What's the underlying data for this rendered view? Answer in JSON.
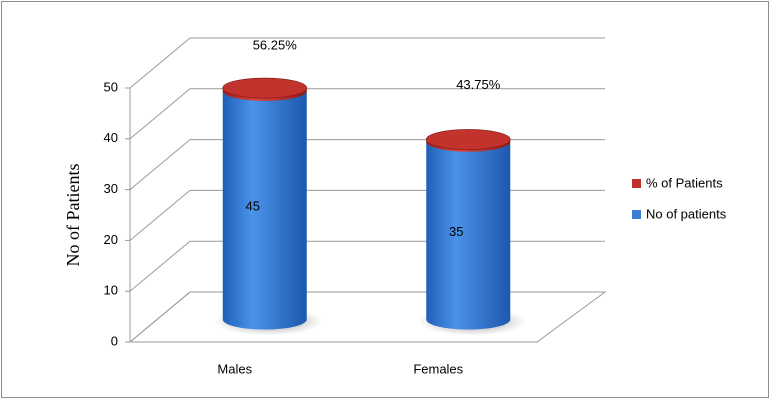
{
  "chart_data": {
    "type": "bar3d_stacked",
    "y_axis_label": "No of Patients",
    "categories": [
      "Males",
      "Females"
    ],
    "series": [
      {
        "name": "No of patients",
        "color": "#3a7fd5",
        "values": [
          45,
          35
        ]
      },
      {
        "name": "% of Patients",
        "color": "#c0302c",
        "values": [
          0.5625,
          0.4375
        ],
        "value_labels": [
          "56.25%",
          "43.75%"
        ]
      }
    ],
    "ylim": [
      0,
      50
    ],
    "yticks": [
      0,
      10,
      20,
      30,
      40,
      50
    ],
    "grid": true,
    "legend": "right"
  }
}
